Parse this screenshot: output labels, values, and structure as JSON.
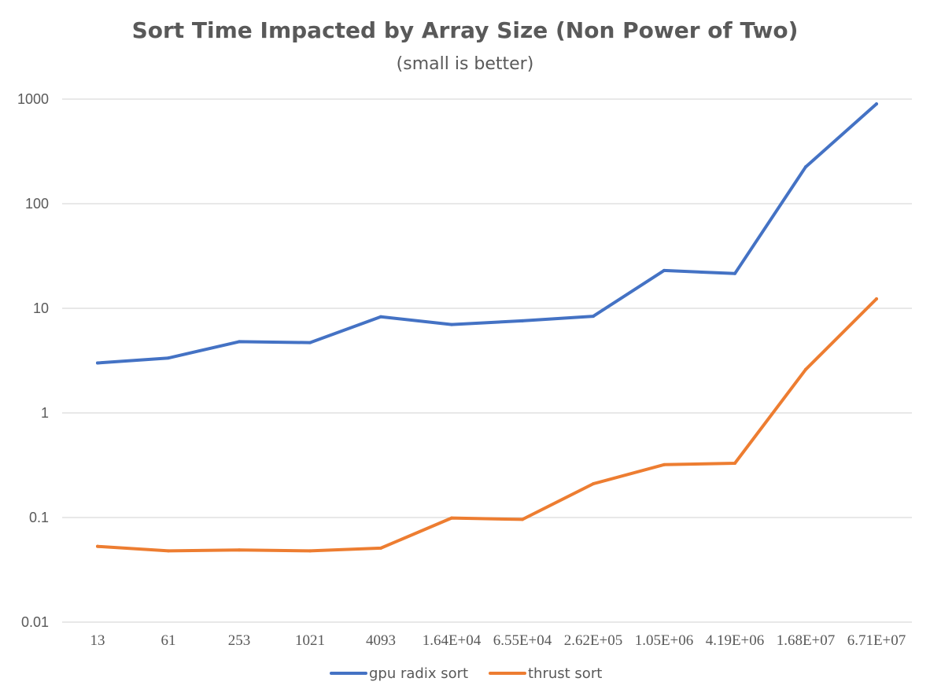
{
  "chart_data": {
    "type": "line",
    "title": "Sort Time Impacted by Array Size (Non Power of Two)",
    "subtitle": "(small is better)",
    "xlabel": "",
    "ylabel": "",
    "y_scale": "log",
    "ylim": [
      0.01,
      1000
    ],
    "y_ticks": [
      1000,
      100,
      10,
      1,
      0.1,
      0.01
    ],
    "y_tick_labels": [
      "1000",
      "100",
      "10",
      "1",
      "0.1",
      "0.01"
    ],
    "categories": [
      "13",
      "61",
      "253",
      "1021",
      "4093",
      "1.64E+04",
      "6.55E+04",
      "2.62E+05",
      "1.05E+06",
      "4.19E+06",
      "1.68E+07",
      "6.71E+07"
    ],
    "series": [
      {
        "name": "gpu radix sort",
        "color": "#4472c4",
        "values": [
          3.0,
          3.35,
          4.8,
          4.7,
          8.3,
          7.0,
          7.6,
          8.4,
          23,
          21.5,
          225,
          900
        ]
      },
      {
        "name": "thrust sort",
        "color": "#ed7d31",
        "values": [
          0.053,
          0.048,
          0.049,
          0.048,
          0.051,
          0.099,
          0.096,
          0.21,
          0.32,
          0.33,
          2.6,
          12.3
        ]
      }
    ],
    "grid": true,
    "legend_position": "bottom"
  }
}
